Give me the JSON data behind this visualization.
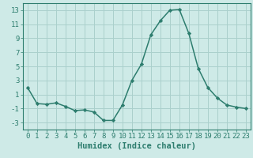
{
  "x": [
    0,
    1,
    2,
    3,
    4,
    5,
    6,
    7,
    8,
    9,
    10,
    11,
    12,
    13,
    14,
    15,
    16,
    17,
    18,
    19,
    20,
    21,
    22,
    23
  ],
  "y": [
    2.0,
    -0.3,
    -0.4,
    -0.2,
    -0.7,
    -1.3,
    -1.2,
    -1.5,
    -2.7,
    -2.7,
    -0.5,
    3.0,
    5.3,
    9.5,
    11.5,
    13.0,
    13.1,
    9.7,
    4.7,
    2.0,
    0.5,
    -0.5,
    -0.8,
    -1.0
  ],
  "line_color": "#2d7d6e",
  "marker": "D",
  "marker_size": 2.2,
  "bg_color": "#ceeae7",
  "grid_color": "#aad0cc",
  "xlabel": "Humidex (Indice chaleur)",
  "xlabel_fontsize": 7.5,
  "tick_fontsize": 6.5,
  "ylim": [
    -4,
    14
  ],
  "yticks": [
    -3,
    -1,
    1,
    3,
    5,
    7,
    9,
    11,
    13
  ],
  "xlim": [
    -0.5,
    23.5
  ],
  "xticks": [
    0,
    1,
    2,
    3,
    4,
    5,
    6,
    7,
    8,
    9,
    10,
    11,
    12,
    13,
    14,
    15,
    16,
    17,
    18,
    19,
    20,
    21,
    22,
    23
  ],
  "linewidth": 1.1
}
